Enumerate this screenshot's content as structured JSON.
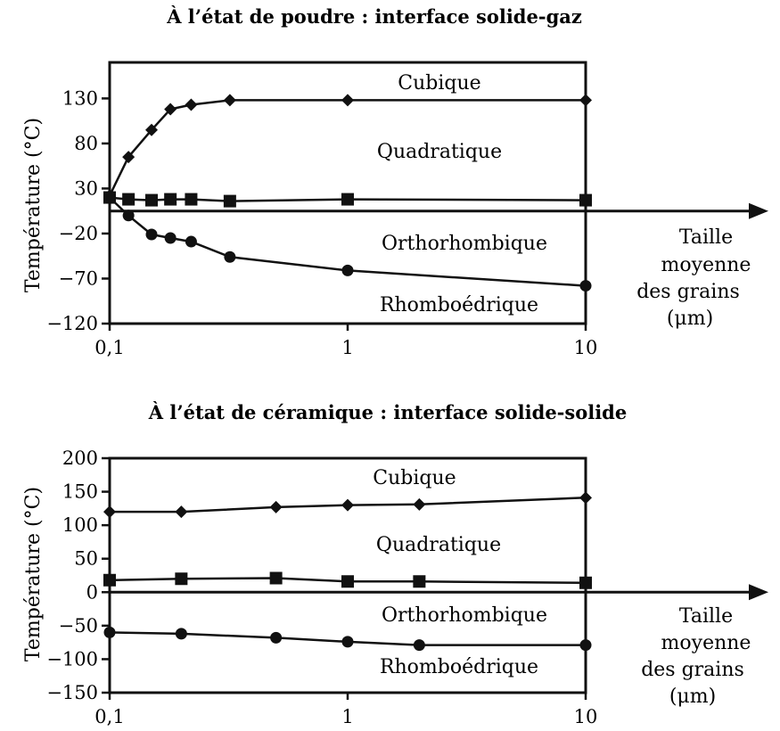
{
  "chart_data": [
    {
      "type": "line",
      "title": "À l’état de poudre : interface solide-gaz",
      "ylabel": "Température (°C)",
      "xlabel_lines": [
        "Taille",
        "moyenne",
        "des grains",
        "(μm)"
      ],
      "x_scale": "log",
      "xlim": [
        0.1,
        10
      ],
      "ylim": [
        -120,
        170
      ],
      "x_axis_at_y": 5,
      "x_ticks": [
        0.1,
        1,
        10
      ],
      "x_tick_labels": [
        "0,1",
        "1",
        "10"
      ],
      "y_ticks": [
        130,
        80,
        30,
        -20,
        -70,
        -120
      ],
      "y_tick_labels": [
        "130",
        "80",
        "30",
        "−20",
        "−70",
        "−120"
      ],
      "phase_labels": [
        "Cubique",
        "Quadratique",
        "Orthorhombique",
        "Rhomboédrique"
      ],
      "series": [
        {
          "marker": "diamond",
          "x": [
            0.1,
            0.12,
            0.15,
            0.18,
            0.22,
            0.32,
            1,
            10
          ],
          "y": [
            22,
            65,
            95,
            118,
            123,
            128,
            128,
            128
          ]
        },
        {
          "marker": "square",
          "x": [
            0.1,
            0.12,
            0.15,
            0.18,
            0.22,
            0.32,
            1,
            10
          ],
          "y": [
            20,
            18,
            17,
            18,
            18,
            16,
            18,
            17
          ]
        },
        {
          "marker": "circle",
          "x": [
            0.1,
            0.12,
            0.15,
            0.18,
            0.22,
            0.32,
            1,
            10
          ],
          "y": [
            20,
            0,
            -21,
            -25,
            -29,
            -46,
            -61,
            -78
          ]
        }
      ]
    },
    {
      "type": "line",
      "title": "À l’état de céramique : interface solide-solide",
      "ylabel": "Température (°C)",
      "xlabel_lines": [
        "Taille",
        "moyenne",
        "des grains",
        "(μm)"
      ],
      "x_scale": "log",
      "xlim": [
        0.1,
        10
      ],
      "ylim": [
        -150,
        200
      ],
      "x_axis_at_y": 0,
      "x_ticks": [
        0.1,
        1,
        10
      ],
      "x_tick_labels": [
        "0,1",
        "1",
        "10"
      ],
      "y_ticks": [
        200,
        150,
        100,
        50,
        0,
        -50,
        -100,
        -150
      ],
      "y_tick_labels": [
        "200",
        "150",
        "100",
        "50",
        "0",
        "−50",
        "−100",
        "−150"
      ],
      "phase_labels": [
        "Cubique",
        "Quadratique",
        "Orthorhombique",
        "Rhomboédrique"
      ],
      "series": [
        {
          "marker": "diamond",
          "x": [
            0.1,
            0.2,
            0.5,
            1,
            2,
            10
          ],
          "y": [
            120,
            120,
            127,
            130,
            131,
            141
          ]
        },
        {
          "marker": "square",
          "x": [
            0.1,
            0.2,
            0.5,
            1,
            2,
            10
          ],
          "y": [
            18,
            20,
            21,
            16,
            16,
            14
          ]
        },
        {
          "marker": "circle",
          "x": [
            0.1,
            0.2,
            0.5,
            1,
            2,
            10
          ],
          "y": [
            -60,
            -62,
            -68,
            -74,
            -79,
            -79
          ]
        }
      ]
    }
  ]
}
